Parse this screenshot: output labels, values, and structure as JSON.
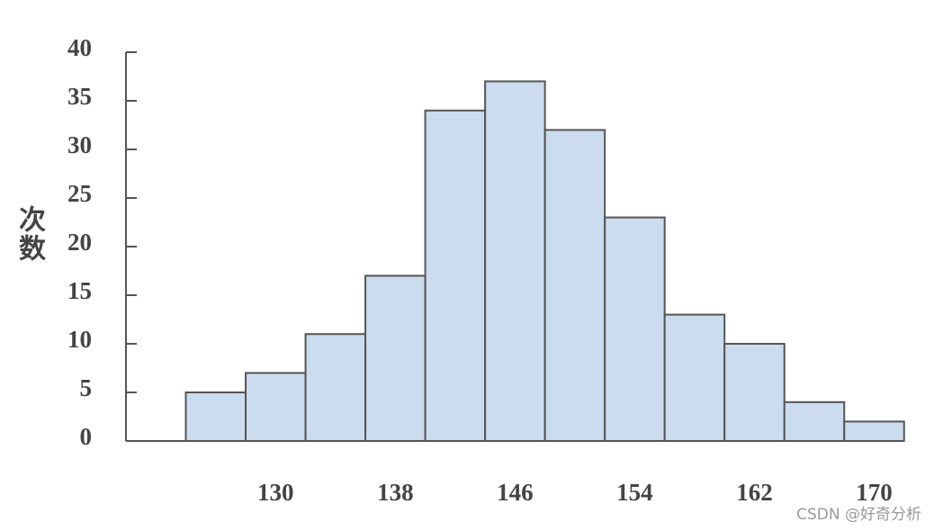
{
  "chart_data": {
    "type": "histogram",
    "y_label": "次数",
    "bins": [
      124,
      128,
      132,
      136,
      140,
      144,
      148,
      152,
      156,
      160,
      164,
      168,
      172
    ],
    "counts": [
      5,
      7,
      11,
      17,
      34,
      37,
      32,
      23,
      13,
      10,
      4,
      2
    ],
    "color": "#cbdcee",
    "edge_color": "#555555",
    "xlim": [
      120,
      172
    ],
    "xticks": [
      130,
      138,
      146,
      154,
      162,
      170
    ],
    "ylim": [
      0,
      40
    ],
    "yticks": [
      0,
      5,
      10,
      15,
      20,
      25,
      30,
      35,
      40
    ],
    "grid": false
  },
  "watermark": "CSDN @好奇分析"
}
